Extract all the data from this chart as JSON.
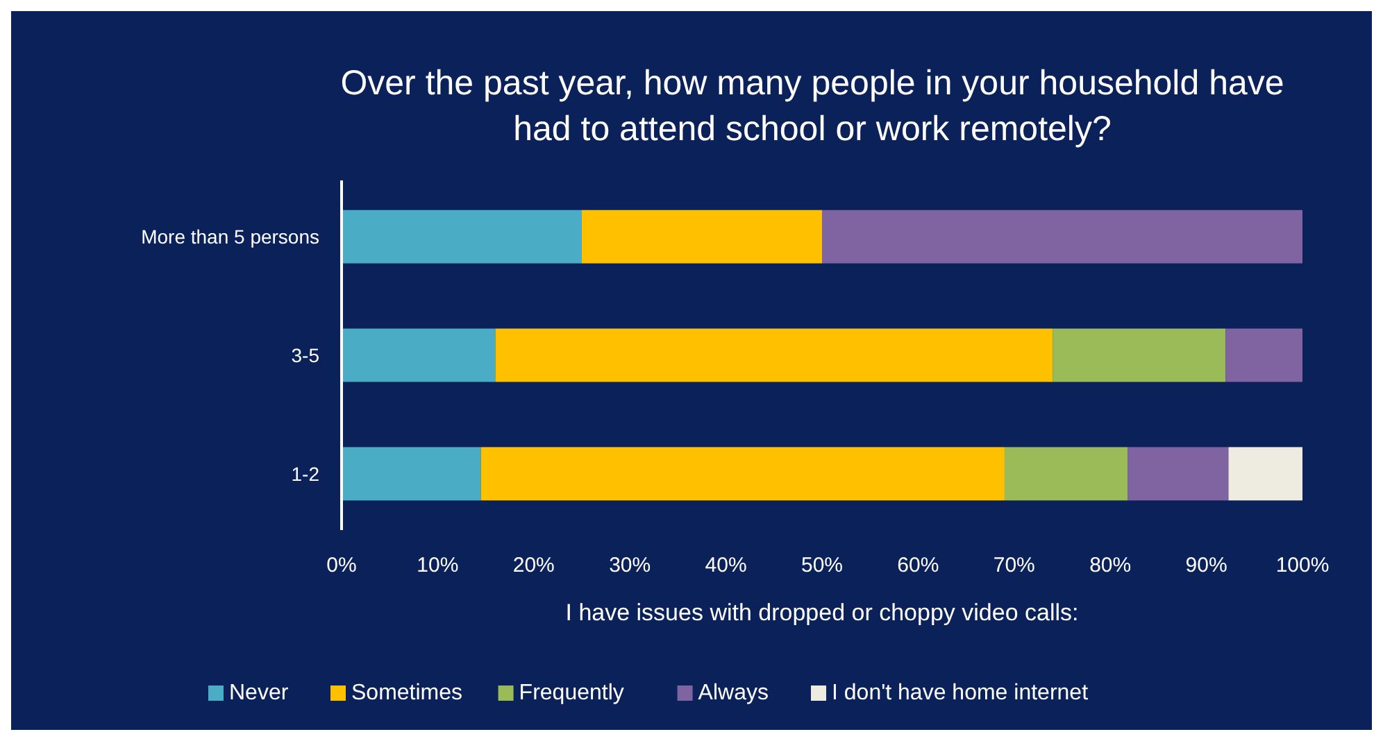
{
  "chart_data": {
    "type": "bar",
    "orientation": "horizontal",
    "stacked": true,
    "title": "Over the past year, how many people in your household have had to attend school or work remotely?",
    "xlabel": "I have issues with dropped or choppy video calls:",
    "categories": [
      "More than 5 persons",
      "3-5",
      "1-2"
    ],
    "series": [
      {
        "name": "Never",
        "color": "#4bacc6",
        "values": [
          25,
          16,
          14.5
        ]
      },
      {
        "name": "Sometimes",
        "color": "#ffc000",
        "values": [
          25,
          58,
          54.5
        ]
      },
      {
        "name": "Frequently",
        "color": "#9bbb59",
        "values": [
          0,
          18,
          12.8
        ]
      },
      {
        "name": "Always",
        "color": "#8064a2",
        "values": [
          50,
          8,
          10.5
        ]
      },
      {
        "name": "I don't have home internet",
        "color": "#eeece1",
        "values": [
          0,
          0,
          7.7
        ]
      }
    ],
    "xlim": [
      0,
      100
    ],
    "xticks": [
      {
        "value": 0,
        "label": "0%"
      },
      {
        "value": 10,
        "label": "10%"
      },
      {
        "value": 20,
        "label": "20%"
      },
      {
        "value": 30,
        "label": "30%"
      },
      {
        "value": 40,
        "label": "40%"
      },
      {
        "value": 50,
        "label": "50%"
      },
      {
        "value": 60,
        "label": "60%"
      },
      {
        "value": 70,
        "label": "70%"
      },
      {
        "value": 80,
        "label": "80%"
      },
      {
        "value": 90,
        "label": "90%"
      },
      {
        "value": 100,
        "label": "100%"
      }
    ],
    "grid": false,
    "legend": "bottom"
  }
}
